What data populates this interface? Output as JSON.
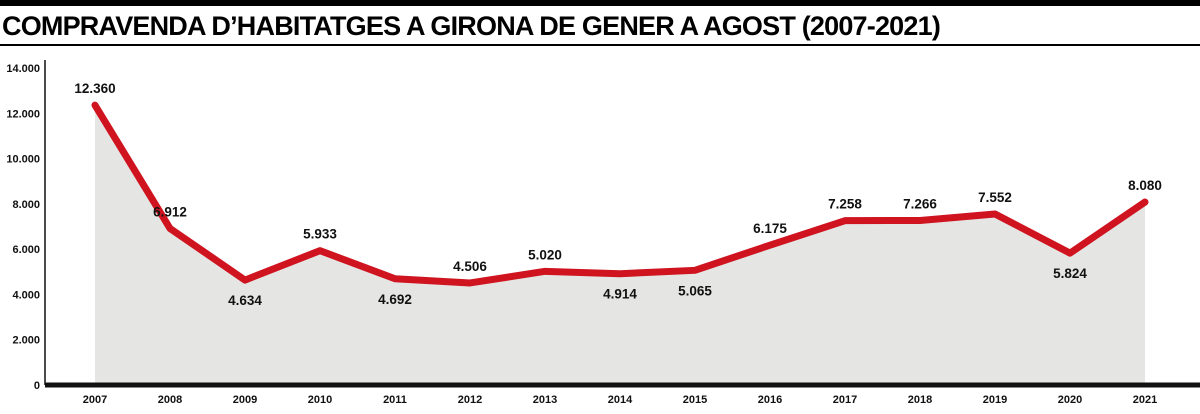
{
  "header": {
    "title": "COMPRAVENDA D’HABITATGES A GIRONA DE GENER A AGOST (2007-2021)"
  },
  "chart_data": {
    "type": "line",
    "title": "COMPRAVENDA D’HABITATGES A GIRONA DE GENER A AGOST (2007-2021)",
    "categories": [
      "2007",
      "2008",
      "2009",
      "2010",
      "2011",
      "2012",
      "2013",
      "2014",
      "2015",
      "2016",
      "2017",
      "2018",
      "2019",
      "2020",
      "2021"
    ],
    "values": [
      12360,
      6912,
      4634,
      5933,
      4692,
      4506,
      5020,
      4914,
      5065,
      6175,
      7258,
      7266,
      7552,
      5824,
      8080
    ],
    "value_labels": [
      "12.360",
      "6.912",
      "4.634",
      "5.933",
      "4.692",
      "4.506",
      "5.020",
      "4.914",
      "5.065",
      "6.175",
      "7.258",
      "7.266",
      "7.552",
      "5.824",
      "8.080"
    ],
    "label_positions": [
      "above",
      "above",
      "below",
      "above",
      "below",
      "above",
      "above",
      "below",
      "below",
      "above",
      "above",
      "above",
      "above",
      "below",
      "above"
    ],
    "xlabel": "",
    "ylabel": "",
    "ylim": [
      0,
      14000
    ],
    "yticks": [
      0,
      2000,
      4000,
      6000,
      8000,
      10000,
      12000,
      14000
    ],
    "ytick_labels": [
      "0",
      "2.000",
      "4.000",
      "6.000",
      "8.000",
      "10.000",
      "12.000",
      "14.000"
    ],
    "grid": "off",
    "legend": "none",
    "line_color": "#cf1420",
    "area_color": "#e5e5e4",
    "axis_color": "#111111"
  }
}
